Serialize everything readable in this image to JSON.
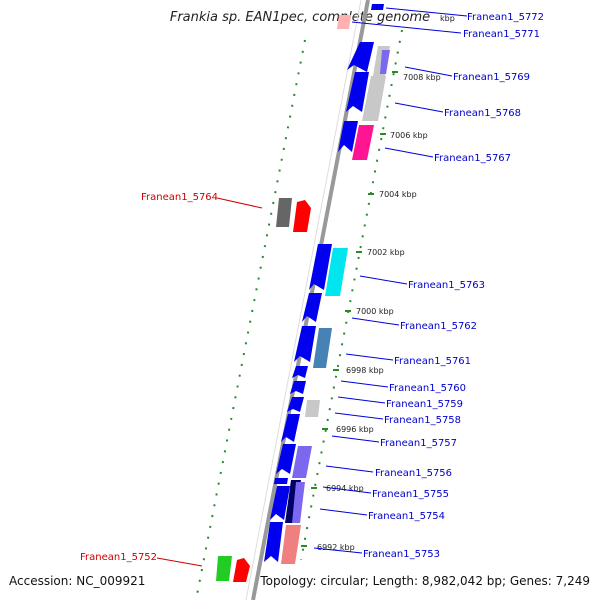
{
  "title": "Frankia sp. EAN1pec, complete genome",
  "accession": "Accession: NC_009921",
  "topology": "Topology: circular; Length: 8,982,042 bp; Genes: 7,249",
  "ticks": [
    "7008 kbp",
    "7006 kbp",
    "7004 kbp",
    "7002 kbp",
    "7000 kbp",
    "6998 kbp",
    "6996 kbp",
    "6994 kbp",
    "6992 kbp"
  ],
  "kbp_partial": "kbp",
  "genes_upper": [
    "Franean1_5772",
    "Franean1_5771",
    "Franean1_5769",
    "Franean1_5768",
    "Franean1_5767",
    "Franean1_5763",
    "Franean1_5762",
    "Franean1_5761",
    "Franean1_5760",
    "Franean1_5759",
    "Franean1_5758",
    "Franean1_5757",
    "Franean1_5756",
    "Franean1_5755",
    "Franean1_5754",
    "Franean1_5753"
  ],
  "genes_lower": [
    "Franean1_5764",
    "Franean1_5752"
  ],
  "colors": {
    "upper_label": "#0000cc",
    "lower_label": "#cc0000",
    "gene_primary": "#0000ee",
    "backbone": "#888888",
    "tick": "#008800"
  }
}
